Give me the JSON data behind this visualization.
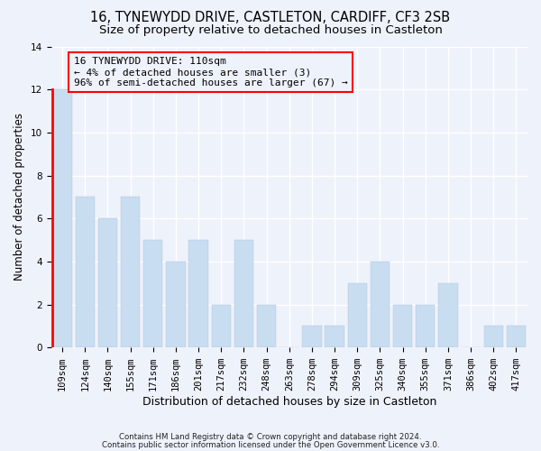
{
  "title": "16, TYNEWYDD DRIVE, CASTLETON, CARDIFF, CF3 2SB",
  "subtitle": "Size of property relative to detached houses in Castleton",
  "xlabel": "Distribution of detached houses by size in Castleton",
  "ylabel": "Number of detached properties",
  "categories": [
    "109sqm",
    "124sqm",
    "140sqm",
    "155sqm",
    "171sqm",
    "186sqm",
    "201sqm",
    "217sqm",
    "232sqm",
    "248sqm",
    "263sqm",
    "278sqm",
    "294sqm",
    "309sqm",
    "325sqm",
    "340sqm",
    "355sqm",
    "371sqm",
    "386sqm",
    "402sqm",
    "417sqm"
  ],
  "values": [
    12,
    7,
    6,
    7,
    5,
    4,
    5,
    2,
    5,
    2,
    0,
    1,
    1,
    3,
    4,
    2,
    2,
    3,
    0,
    1,
    1
  ],
  "red_bar_index": 0,
  "bar_color": "#c9ddf0",
  "red_bar_color": "#c9ddf0",
  "ylim": [
    0,
    14
  ],
  "yticks": [
    0,
    2,
    4,
    6,
    8,
    10,
    12,
    14
  ],
  "annotation_box_line1": "16 TYNEWYDD DRIVE: 110sqm",
  "annotation_box_line2": "← 4% of detached houses are smaller (3)",
  "annotation_box_line3": "96% of semi-detached houses are larger (67) →",
  "footnote1": "Contains HM Land Registry data © Crown copyright and database right 2024.",
  "footnote2": "Contains public sector information licensed under the Open Government Licence v3.0.",
  "bg_color": "#eef2fb",
  "grid_color": "#ffffff",
  "title_fontsize": 10.5,
  "subtitle_fontsize": 9.5,
  "xlabel_fontsize": 9,
  "ylabel_fontsize": 8.5,
  "tick_fontsize": 7.5,
  "annot_fontsize": 8
}
